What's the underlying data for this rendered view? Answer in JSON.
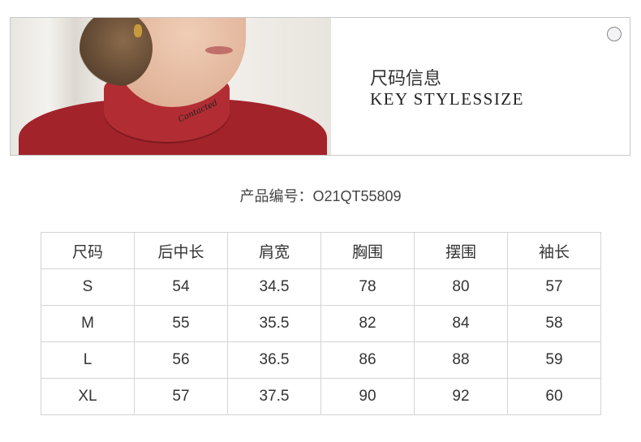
{
  "banner": {
    "title_cn": "尺码信息",
    "title_en": "KEY STYLESSIZE",
    "photo_logo": "Contacted"
  },
  "product": {
    "label": "产品编号：",
    "code": "O21QT55809"
  },
  "size_table": {
    "headers": [
      "尺码",
      "后中长",
      "肩宽",
      "胸围",
      "摆围",
      "袖长"
    ],
    "rows": [
      [
        "S",
        "54",
        "34.5",
        "78",
        "80",
        "57"
      ],
      [
        "M",
        "55",
        "35.5",
        "82",
        "84",
        "58"
      ],
      [
        "L",
        "56",
        "36.5",
        "86",
        "88",
        "59"
      ],
      [
        "XL",
        "57",
        "37.5",
        "90",
        "92",
        "60"
      ]
    ]
  },
  "colors": {
    "shirt": "#a3232b",
    "border": "#d4d4d4"
  }
}
